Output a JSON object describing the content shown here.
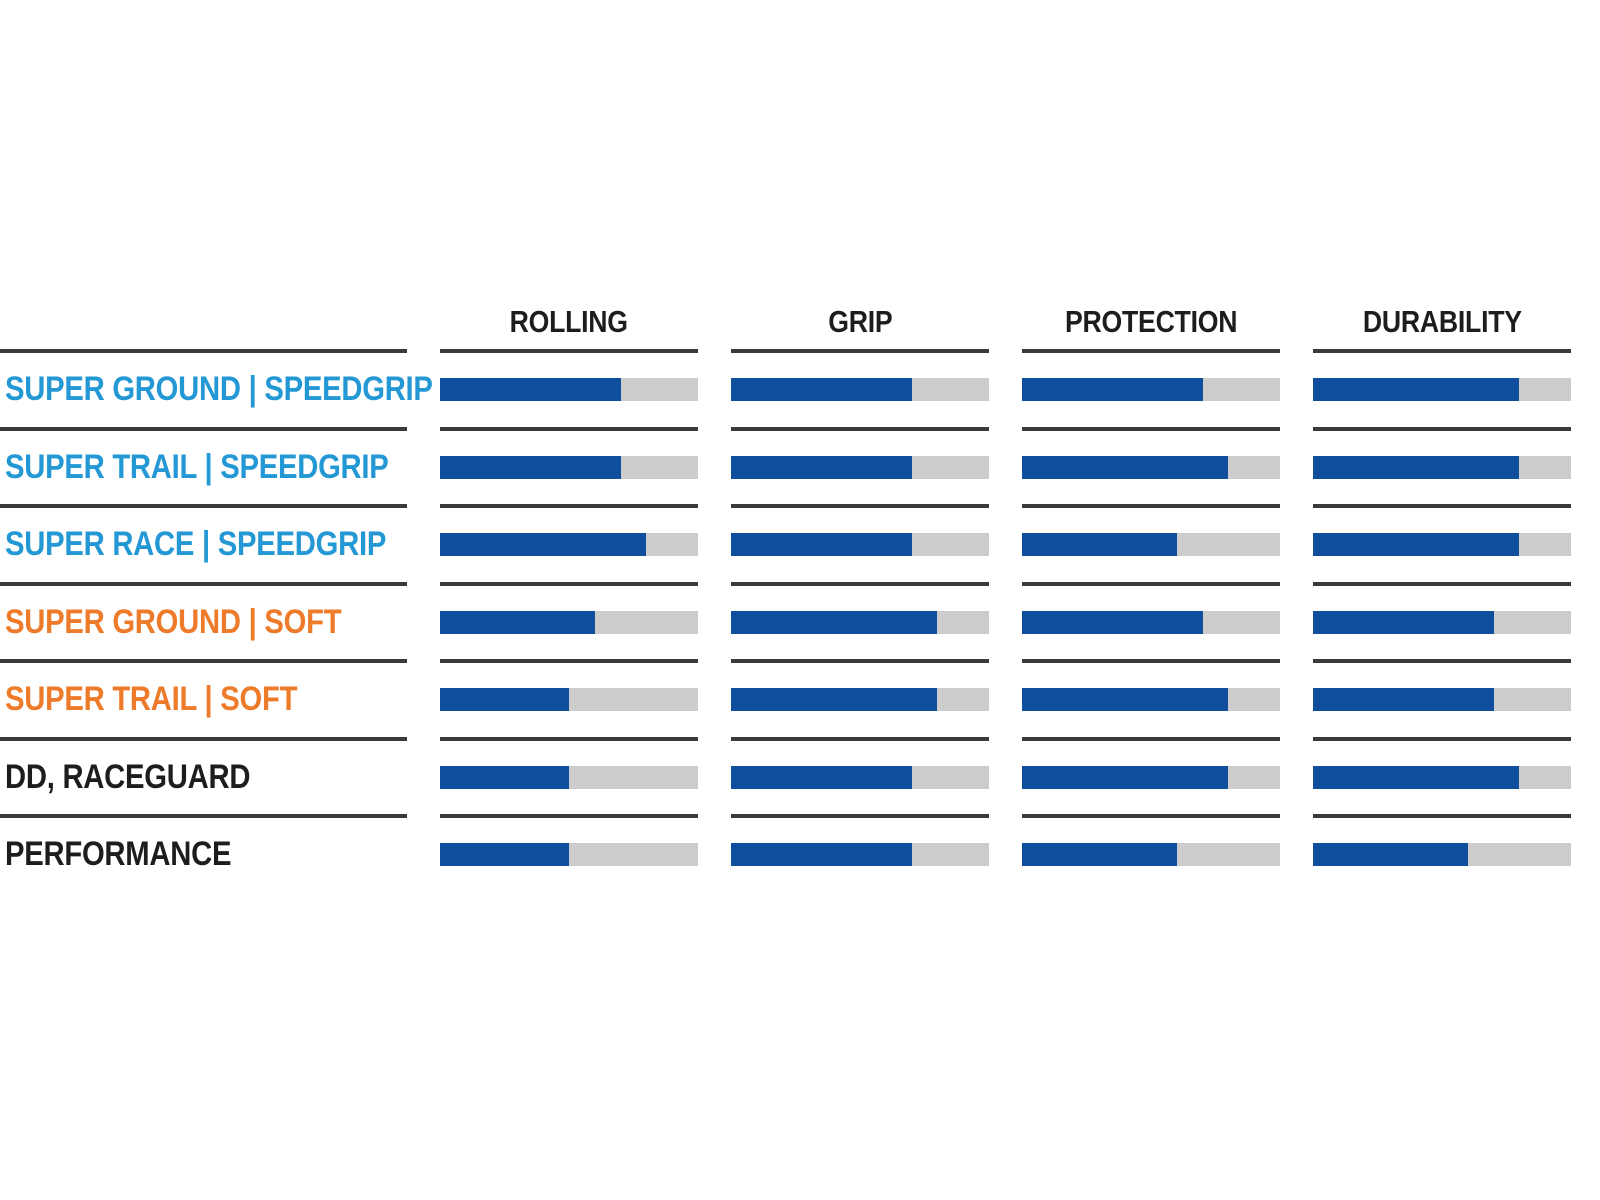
{
  "colors": {
    "bar_fill": "#0e4e9c",
    "bar_bg": "#cccccc",
    "line": "#3a3a3a",
    "label_blue": "#2398d5",
    "label_orange": "#ee7b2a",
    "label_black": "#1d1d1b",
    "header_text": "#1d1d1b"
  },
  "chart_data": {
    "type": "bar",
    "orientation": "horizontal",
    "scale": [
      0,
      10
    ],
    "grid": "row-separator-lines",
    "legend_position": "none",
    "columns": [
      "ROLLING",
      "GRIP",
      "PROTECTION",
      "DURABILITY"
    ],
    "rows": [
      {
        "label": "SUPER GROUND | SPEEDGRIP",
        "label_color": "blue",
        "values": [
          7,
          7,
          7,
          8
        ]
      },
      {
        "label": "SUPER TRAIL | SPEEDGRIP",
        "label_color": "blue",
        "values": [
          7,
          7,
          8,
          8
        ]
      },
      {
        "label": "SUPER RACE | SPEEDGRIP",
        "label_color": "blue",
        "values": [
          8,
          7,
          6,
          8
        ]
      },
      {
        "label": "SUPER GROUND | SOFT",
        "label_color": "orange",
        "values": [
          6,
          8,
          7,
          7
        ]
      },
      {
        "label": "SUPER TRAIL | SOFT",
        "label_color": "orange",
        "values": [
          5,
          8,
          8,
          7
        ]
      },
      {
        "label": "DD, RACEGUARD",
        "label_color": "black",
        "values": [
          5,
          7,
          8,
          8
        ]
      },
      {
        "label": "PERFORMANCE",
        "label_color": "black",
        "values": [
          5,
          7,
          6,
          6
        ]
      }
    ]
  }
}
